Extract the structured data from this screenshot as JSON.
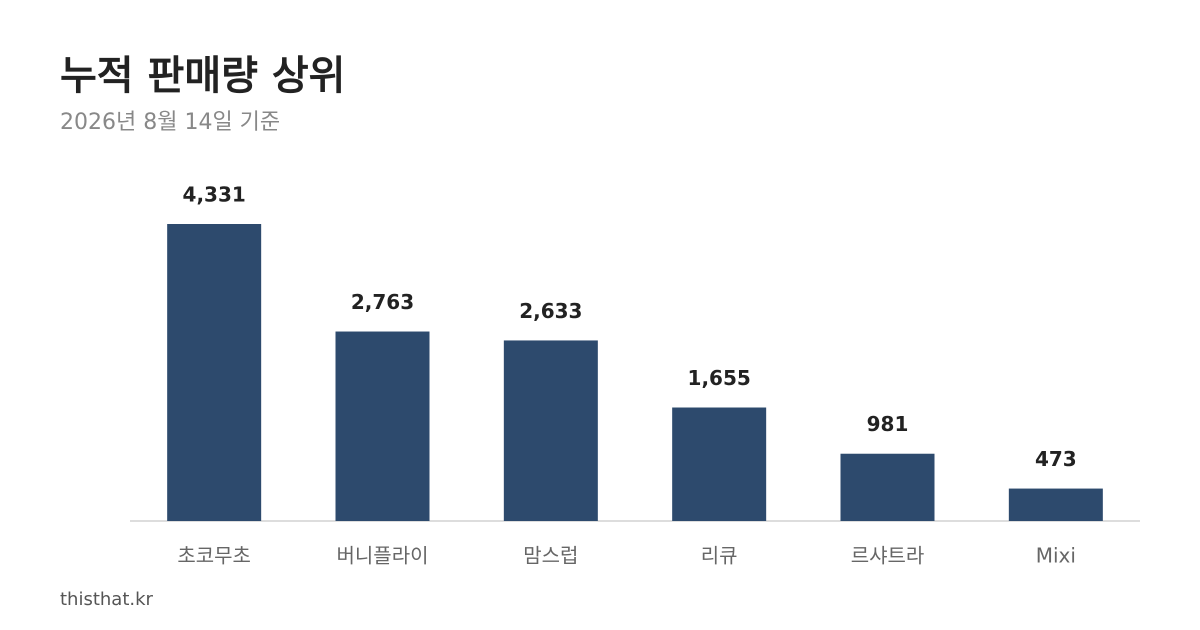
{
  "chart_data": {
    "type": "bar",
    "title": "누적 판매량 상위",
    "subtitle": "2026년 8월 14일 기준",
    "categories": [
      "초코무초",
      "버니플라이",
      "맘스럽",
      "리큐",
      "르샤트라",
      "Mixi"
    ],
    "values": [
      4331,
      2763,
      2633,
      1655,
      981,
      473
    ],
    "value_labels": [
      "4,331",
      "2,763",
      "2,633",
      "1,655",
      "981",
      "473"
    ],
    "color": "#2d4a6d",
    "source": "thisthat.kr"
  }
}
